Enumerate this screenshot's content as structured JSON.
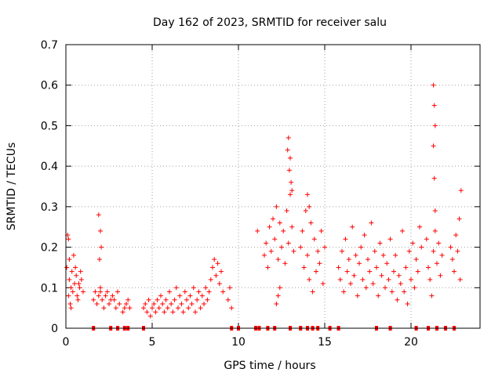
{
  "chart_data": {
    "type": "scatter",
    "title": "Day 162 of 2023, SRMTID for receiver salu",
    "xlabel": "GPS time / hours",
    "ylabel": "SRMTID / TECUs",
    "xlim": [
      0,
      24
    ],
    "ylim": [
      0,
      0.7
    ],
    "x_ticks": [
      0,
      5,
      10,
      15,
      20
    ],
    "y_ticks": [
      0,
      0.1,
      0.2,
      0.3,
      0.4,
      0.5,
      0.6,
      0.7
    ],
    "grid": true,
    "marker": "+",
    "color": "#ff0000",
    "series": [
      {
        "name": "SRMTID",
        "x": [
          0.05,
          0.1,
          0.15,
          0.2,
          0.25,
          0.3,
          0.35,
          0.4,
          0.5,
          0.6,
          0.7,
          0.8,
          0.9,
          1.0,
          0.15,
          0.2,
          0.3,
          0.45,
          0.55,
          0.65,
          0.75,
          0.85,
          1.6,
          1.7,
          1.8,
          1.9,
          2.0,
          2.1,
          2.2,
          2.3,
          2.4,
          2.5,
          2.6,
          2.7,
          1.9,
          2.0,
          2.05,
          1.95,
          2.0,
          2.8,
          2.9,
          3.0,
          3.1,
          3.3,
          3.4,
          3.5,
          3.6,
          3.7,
          4.5,
          4.6,
          4.7,
          4.8,
          4.9,
          5.0,
          5.1,
          5.2,
          5.3,
          5.4,
          5.5,
          5.6,
          5.7,
          5.8,
          5.9,
          6.0,
          6.1,
          6.2,
          6.3,
          6.4,
          6.5,
          6.6,
          6.7,
          6.8,
          6.9,
          7.0,
          7.1,
          7.2,
          7.3,
          7.4,
          7.5,
          7.6,
          7.7,
          7.8,
          7.9,
          8.0,
          8.1,
          8.2,
          8.3,
          8.4,
          8.5,
          8.6,
          8.7,
          8.8,
          8.9,
          9.0,
          9.1,
          9.4,
          9.5,
          9.6,
          11.1,
          11.5,
          11.6,
          11.7,
          11.8,
          11.9,
          12.0,
          12.1,
          12.2,
          12.3,
          12.4,
          12.5,
          12.6,
          12.7,
          12.8,
          12.9,
          13.0,
          13.1,
          13.2,
          12.85,
          12.9,
          12.95,
          13.0,
          13.05,
          13.1,
          12.3,
          12.4,
          12.2,
          13.6,
          13.7,
          13.8,
          13.9,
          14.0,
          14.1,
          14.2,
          14.3,
          14.4,
          14.5,
          14.6,
          14.7,
          14.8,
          14.9,
          15.0,
          14.0,
          14.1,
          15.8,
          15.9,
          16.0,
          16.1,
          16.2,
          16.3,
          16.4,
          16.5,
          16.6,
          16.7,
          16.8,
          16.9,
          17.0,
          17.1,
          17.2,
          17.3,
          17.4,
          17.5,
          17.6,
          17.7,
          17.8,
          17.9,
          18.0,
          18.1,
          18.2,
          18.3,
          18.4,
          18.5,
          18.6,
          18.7,
          18.8,
          18.9,
          19.0,
          19.1,
          19.2,
          19.3,
          19.4,
          19.5,
          19.6,
          19.7,
          19.8,
          19.9,
          20.0,
          20.1,
          20.2,
          20.3,
          20.4,
          20.5,
          20.6,
          20.9,
          21.0,
          21.1,
          21.2,
          21.3,
          21.4,
          21.5,
          21.6,
          21.7,
          21.8,
          21.3,
          21.35,
          21.4,
          21.3,
          21.35,
          21.4,
          22.3,
          22.4,
          22.5,
          22.6,
          22.7,
          22.8,
          22.9,
          22.85
        ],
        "y": [
          0.15,
          0.23,
          0.08,
          0.12,
          0.06,
          0.1,
          0.14,
          0.09,
          0.11,
          0.13,
          0.07,
          0.1,
          0.12,
          0.09,
          0.22,
          0.17,
          0.05,
          0.18,
          0.15,
          0.08,
          0.11,
          0.14,
          0.07,
          0.09,
          0.06,
          0.08,
          0.1,
          0.07,
          0.05,
          0.08,
          0.09,
          0.06,
          0.07,
          0.08,
          0.28,
          0.24,
          0.2,
          0.17,
          0.09,
          0.07,
          0.05,
          0.09,
          0.06,
          0.04,
          0.05,
          0.06,
          0.07,
          0.05,
          0.05,
          0.06,
          0.04,
          0.07,
          0.03,
          0.05,
          0.06,
          0.04,
          0.07,
          0.05,
          0.08,
          0.06,
          0.04,
          0.07,
          0.05,
          0.09,
          0.06,
          0.04,
          0.07,
          0.1,
          0.05,
          0.08,
          0.06,
          0.04,
          0.09,
          0.07,
          0.05,
          0.08,
          0.06,
          0.1,
          0.04,
          0.07,
          0.09,
          0.05,
          0.08,
          0.06,
          0.1,
          0.07,
          0.09,
          0.12,
          0.15,
          0.17,
          0.13,
          0.16,
          0.11,
          0.14,
          0.09,
          0.07,
          0.1,
          0.05,
          0.24,
          0.18,
          0.21,
          0.15,
          0.25,
          0.19,
          0.27,
          0.22,
          0.3,
          0.17,
          0.26,
          0.2,
          0.24,
          0.16,
          0.29,
          0.21,
          0.33,
          0.25,
          0.19,
          0.44,
          0.47,
          0.39,
          0.42,
          0.36,
          0.34,
          0.08,
          0.1,
          0.06,
          0.2,
          0.24,
          0.15,
          0.29,
          0.18,
          0.12,
          0.26,
          0.09,
          0.22,
          0.14,
          0.19,
          0.16,
          0.24,
          0.11,
          0.2,
          0.33,
          0.3,
          0.15,
          0.12,
          0.19,
          0.09,
          0.22,
          0.14,
          0.17,
          0.11,
          0.25,
          0.13,
          0.18,
          0.08,
          0.16,
          0.2,
          0.12,
          0.23,
          0.1,
          0.17,
          0.14,
          0.26,
          0.11,
          0.19,
          0.15,
          0.08,
          0.21,
          0.13,
          0.18,
          0.1,
          0.16,
          0.12,
          0.22,
          0.09,
          0.14,
          0.18,
          0.07,
          0.13,
          0.11,
          0.24,
          0.09,
          0.15,
          0.06,
          0.19,
          0.12,
          0.21,
          0.1,
          0.17,
          0.14,
          0.25,
          0.2,
          0.22,
          0.15,
          0.12,
          0.08,
          0.19,
          0.24,
          0.16,
          0.21,
          0.13,
          0.18,
          0.6,
          0.55,
          0.5,
          0.45,
          0.37,
          0.29,
          0.2,
          0.17,
          0.14,
          0.23,
          0.19,
          0.27,
          0.34,
          0.12
        ],
        "gap_x": [
          1.6,
          2.6,
          3.0,
          3.4,
          3.6,
          4.5,
          9.6,
          10.0,
          11.0,
          11.2,
          11.7,
          12.1,
          13.0,
          13.6,
          14.0,
          14.3,
          14.6,
          15.3,
          15.8,
          18.0,
          18.8,
          20.3,
          21.0,
          21.5,
          22.0,
          22.5
        ]
      }
    ]
  }
}
